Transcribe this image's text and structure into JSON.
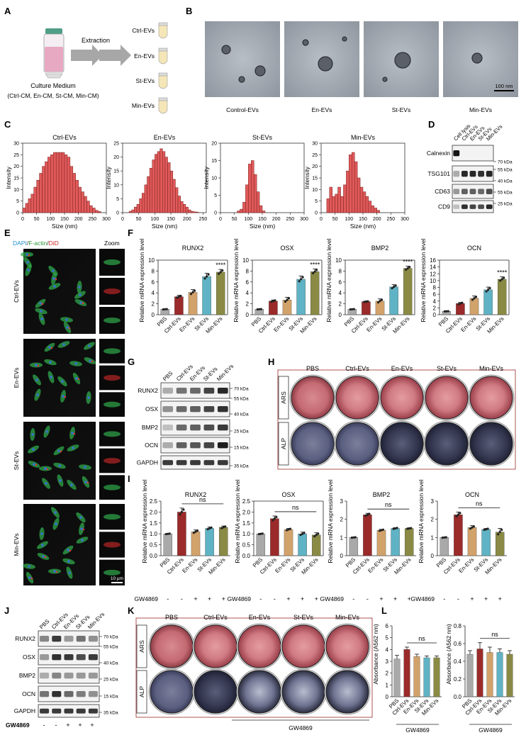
{
  "panels": {
    "A": "A",
    "B": "B",
    "C": "C",
    "D": "D",
    "E": "E",
    "F": "F",
    "G": "G",
    "H": "H",
    "I": "I",
    "J": "J",
    "K": "K",
    "L": "L"
  },
  "panelA": {
    "extraction": "Extraction",
    "medium_line1": "Culture Medium",
    "medium_line2": "(Ctrl-CM, En-CM, St-CM, Min-CM)",
    "tubes": [
      "Ctrl-EVs",
      "En-EVs",
      "St-EVs",
      "Min-EVs"
    ]
  },
  "panelB": {
    "labels": [
      "Control-EVs",
      "En-EVs",
      "St-EVs",
      "Min-EVs"
    ],
    "scalebar": "100 nm"
  },
  "panelC": {
    "xlabel": "Size (nm)",
    "ylabel": "Intensity",
    "titles": [
      "Ctrl-EVs",
      "En-EVs",
      "St-EVs",
      "Min-EVs"
    ],
    "yticks": [
      [
        "0",
        "5",
        "10",
        "15",
        "20",
        "25",
        "30"
      ],
      [
        "0",
        "5",
        "10",
        "15",
        "20",
        "25"
      ],
      [
        "0",
        "5",
        "10",
        "15",
        "20"
      ],
      [
        "0",
        "5",
        "10",
        "15",
        "20",
        "25",
        "30"
      ]
    ],
    "xticks": [
      [
        "0",
        "50",
        "100",
        "150",
        "200",
        "250",
        "300"
      ],
      [
        "0",
        "50",
        "100",
        "150",
        "200",
        "250"
      ],
      [
        "0",
        "50",
        "100",
        "150",
        "200",
        "250",
        "300"
      ],
      [
        "0",
        "50",
        "100",
        "150",
        "200",
        "250",
        "300"
      ]
    ]
  },
  "panelD": {
    "lanes": [
      "Cell lysis",
      "Ctrl-EVs",
      "En-EVs",
      "St-EVs",
      "Min-EVs"
    ],
    "bands": [
      "Calnexin",
      "TSG101",
      "CD63",
      "CD9"
    ],
    "kda": [
      "70 kDa",
      "55 kDa",
      "40 kDa",
      "55 kDa",
      "25 kDa"
    ]
  },
  "panelE": {
    "legend_dapi": "DAPI",
    "legend_sep1": "/",
    "legend_actin": "F-actin",
    "legend_sep2": "/",
    "legend_did": "DiD",
    "zoom": "Zoom",
    "rows": [
      "Ctrl-EVs",
      "En-EVs",
      "St-EVs",
      "Min-EVs"
    ],
    "scalebar": "10 μm"
  },
  "panelF": {
    "ylabel": "Relative mRNA expression level",
    "sig": "****",
    "categories": [
      "PBS",
      "Ctrl-EVs",
      "En-EVs",
      "St-EVs",
      "Min-EVs"
    ],
    "genes": [
      "RUNX2",
      "OSX",
      "BMP2",
      "OCN"
    ]
  },
  "panelG": {
    "lanes": [
      "PBS",
      "Ctrl-EVs",
      "En-EVs",
      "St-EVs",
      "Min-EVs"
    ],
    "bands": [
      "RUNX2",
      "OSX",
      "BMP2",
      "OCN",
      "GAPDH"
    ],
    "kda": [
      "70 kDa",
      "55 kDa",
      "40 kDa",
      "25 kDa",
      "15 kDa",
      "35 kDa"
    ]
  },
  "panelH": {
    "cols": [
      "PBS",
      "Ctrl-EVs",
      "En-EVs",
      "St-EVs",
      "Min-EVs"
    ],
    "rows": [
      "ARS",
      "ALP"
    ]
  },
  "panelI": {
    "ylabel": "Relative mRNA expression level",
    "ns": "ns",
    "gw": "GW4869",
    "gw_signs": [
      "-",
      "-",
      "+",
      "+",
      "+"
    ],
    "categories": [
      "PBS",
      "Ctrl-EVs",
      "En-EVs",
      "St-EVs",
      "Min-EVs"
    ],
    "genes": [
      "RUNX2",
      "OSX",
      "BMP2",
      "OCN"
    ]
  },
  "panelJ": {
    "lanes": [
      "PBS",
      "Ctrl-EVs",
      "En-EVs",
      "St-EVs",
      "Min-EVs"
    ],
    "bands": [
      "RUNX2",
      "OSX",
      "BMP2",
      "OCN",
      "GAPDH"
    ],
    "kda": [
      "70 kDa",
      "55 kDa",
      "40 kDa",
      "25 kDa",
      "15 kDa",
      "35 kDa"
    ],
    "gw": "GW4869",
    "gw_signs": [
      "-",
      "-",
      "+",
      "+",
      "+"
    ]
  },
  "panelK": {
    "cols": [
      "PBS",
      "Ctrl-EVs",
      "En-EVs",
      "St-EVs",
      "Min-EVs"
    ],
    "rows": [
      "ARS",
      "ALP"
    ],
    "gw": "GW4869"
  },
  "panelL": {
    "ylabel": "Absorbance (A562 nm)",
    "ns": "ns",
    "gw": "GW4869",
    "categories": [
      "PBS",
      "Ctrl-EVs",
      "En-EVs",
      "St-EVs",
      "Min-EVs"
    ]
  },
  "colors": {
    "pbs": "#a9a9a9",
    "ctrl": "#9b2a2a",
    "en": "#d2a26b",
    "st": "#5fb3c4",
    "min": "#8a8a45",
    "hist_fill": "#e05a5a",
    "hist_stroke": "#7a1e1e",
    "tube": "#f5e6b8",
    "arrow": "#a7a7a7"
  },
  "chart_data": [
    {
      "type": "bar",
      "title": "RUNX2",
      "ylabel": "Relative mRNA expression level",
      "categories": [
        "PBS",
        "Ctrl-EVs",
        "En-EVs",
        "St-EVs",
        "Min-EVs"
      ],
      "values": [
        1.0,
        3.3,
        4.1,
        7.0,
        7.8
      ],
      "errors": [
        0.05,
        0.25,
        0.5,
        0.6,
        0.5
      ],
      "ylim": [
        0,
        10
      ],
      "yticks": [
        0,
        2,
        4,
        6,
        8,
        10
      ]
    },
    {
      "type": "bar",
      "title": "OSX",
      "ylabel": "Relative mRNA expression level",
      "categories": [
        "PBS",
        "Ctrl-EVs",
        "En-EVs",
        "St-EVs",
        "Min-EVs"
      ],
      "values": [
        1.0,
        2.5,
        2.7,
        6.5,
        7.9
      ],
      "errors": [
        0.05,
        0.2,
        0.5,
        0.6,
        0.5
      ],
      "ylim": [
        0,
        10
      ],
      "yticks": [
        0,
        2,
        4,
        6,
        8,
        10
      ]
    },
    {
      "type": "bar",
      "title": "BMP2",
      "ylabel": "Relative mRNA expression level",
      "categories": [
        "PBS",
        "Ctrl-EVs",
        "En-EVs",
        "St-EVs",
        "Min-EVs"
      ],
      "values": [
        1.0,
        2.4,
        2.5,
        5.1,
        8.5
      ],
      "errors": [
        0.05,
        0.1,
        0.4,
        0.4,
        0.4
      ],
      "ylim": [
        0,
        10
      ],
      "yticks": [
        0,
        2,
        4,
        6,
        8,
        10
      ]
    },
    {
      "type": "bar",
      "title": "OCN",
      "ylabel": "Relative mRNA expression level",
      "categories": [
        "PBS",
        "Ctrl-EVs",
        "En-EVs",
        "St-EVs",
        "Min-EVs"
      ],
      "values": [
        1.0,
        3.3,
        4.8,
        7.3,
        10.4
      ],
      "errors": [
        0.05,
        0.3,
        0.7,
        0.8,
        0.7
      ],
      "ylim": [
        0,
        16
      ],
      "yticks": [
        0,
        2,
        4,
        6,
        8,
        10,
        12,
        14,
        16
      ]
    },
    {
      "type": "bar",
      "title": "RUNX2",
      "ylabel": "Relative mRNA expression level",
      "categories": [
        "PBS",
        "Ctrl-EVs",
        "En-EVs",
        "St-EVs",
        "Min-EVs"
      ],
      "values": [
        1.0,
        2.0,
        1.1,
        1.25,
        1.3
      ],
      "errors": [
        0.02,
        0.18,
        0.08,
        0.06,
        0.06
      ],
      "ylim": [
        0,
        2.5
      ],
      "yticks": [
        0.0,
        0.5,
        1.0,
        1.5,
        2.0,
        2.5
      ]
    },
    {
      "type": "bar",
      "title": "OSX",
      "ylabel": "Relative mRNA expression level",
      "categories": [
        "PBS",
        "Ctrl-EVs",
        "En-EVs",
        "St-EVs",
        "Min-EVs"
      ],
      "values": [
        1.0,
        1.7,
        1.2,
        1.0,
        0.95
      ],
      "errors": [
        0.02,
        0.12,
        0.05,
        0.08,
        0.1
      ],
      "ylim": [
        0,
        2.5
      ],
      "yticks": [
        0.0,
        0.5,
        1.0,
        1.5,
        2.0,
        2.5
      ]
    },
    {
      "type": "bar",
      "title": "BMP2",
      "ylabel": "Relative mRNA expression level",
      "categories": [
        "PBS",
        "Ctrl-EVs",
        "En-EVs",
        "St-EVs",
        "Min-EVs"
      ],
      "values": [
        1.0,
        2.25,
        1.4,
        1.5,
        1.5
      ],
      "errors": [
        0.02,
        0.08,
        0.05,
        0.04,
        0.03
      ],
      "ylim": [
        0,
        3
      ],
      "yticks": [
        0,
        1,
        2,
        3
      ]
    },
    {
      "type": "bar",
      "title": "OCN",
      "ylabel": "Relative mRNA expression level",
      "categories": [
        "PBS",
        "Ctrl-EVs",
        "En-EVs",
        "St-EVs",
        "Min-EVs"
      ],
      "values": [
        1.0,
        2.25,
        1.55,
        1.45,
        1.3
      ],
      "errors": [
        0.02,
        0.15,
        0.1,
        0.05,
        0.2
      ],
      "ylim": [
        0,
        3
      ],
      "yticks": [
        0,
        1,
        2,
        3
      ]
    },
    {
      "type": "bar",
      "title": "",
      "ylabel": "Absorbance (A562 nm)",
      "categories": [
        "PBS",
        "Ctrl-EVs",
        "En-EVs",
        "St-EVs",
        "Min-EVs"
      ],
      "values": [
        3.2,
        4.0,
        3.4,
        3.3,
        3.3
      ],
      "errors": [
        0.3,
        0.2,
        0.2,
        0.15,
        0.15
      ],
      "ylim": [
        0,
        6
      ],
      "yticks": [
        0,
        1,
        2,
        3,
        4,
        5,
        6
      ]
    },
    {
      "type": "bar",
      "title": "",
      "ylabel": "Absorbance (A562 nm)",
      "categories": [
        "PBS",
        "Ctrl-EVs",
        "En-EVs",
        "St-EVs",
        "Min-EVs"
      ],
      "values": [
        0.48,
        0.54,
        0.5,
        0.5,
        0.48
      ],
      "errors": [
        0.04,
        0.07,
        0.06,
        0.04,
        0.04
      ],
      "ylim": [
        0,
        0.8
      ],
      "yticks": [
        0.0,
        0.2,
        0.4,
        0.6,
        0.8
      ]
    }
  ],
  "hist_data": [
    {
      "bins_start": 0,
      "bin_width": 10,
      "values": [
        2,
        4,
        6,
        8,
        11,
        14,
        17,
        20,
        22,
        24,
        25,
        26,
        26,
        26,
        26,
        25,
        24,
        20,
        17,
        14,
        11,
        9,
        7,
        5,
        3,
        2,
        1,
        0.5
      ]
    },
    {
      "bins_start": 20,
      "bin_width": 8,
      "values": [
        0.5,
        1,
        2,
        3,
        5,
        7,
        10,
        13,
        16,
        19,
        21,
        22,
        23,
        22,
        20,
        18,
        15,
        12,
        9,
        6,
        4,
        3,
        2,
        1,
        0.5,
        0.3,
        0.2
      ]
    },
    {
      "bins_start": 60,
      "bin_width": 10,
      "values": [
        0.5,
        1,
        3,
        8,
        14,
        15,
        11,
        6,
        2,
        0.5
      ]
    },
    {
      "bins_start": 20,
      "bin_width": 10,
      "values": [
        6,
        11,
        7,
        8,
        11,
        7,
        12,
        18,
        25,
        26,
        22,
        15,
        11,
        9,
        7,
        5,
        3,
        2,
        1
      ]
    }
  ]
}
